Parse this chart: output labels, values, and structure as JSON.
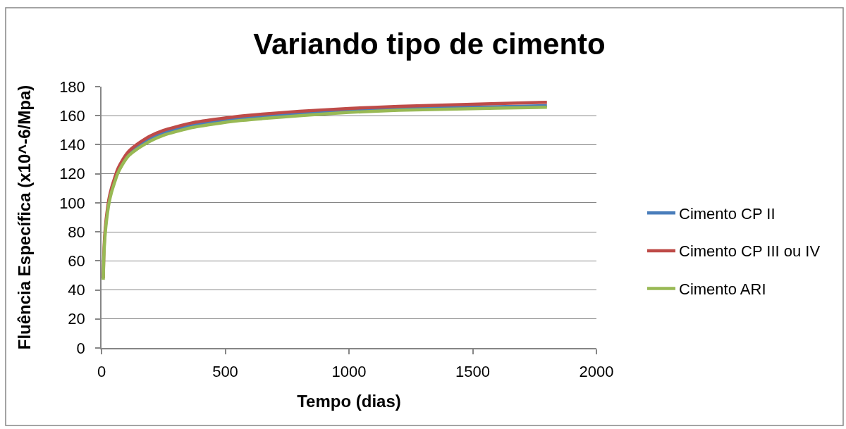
{
  "chart_data": {
    "type": "line",
    "title": "Variando tipo de cimento",
    "xlabel": "Tempo (dias)",
    "ylabel": "Fluência Específica (x10^-6/Mpa)",
    "x": [
      7,
      9,
      12,
      15,
      19,
      25,
      31,
      40,
      50,
      65,
      85,
      110,
      130,
      160,
      200,
      250,
      300,
      370,
      450,
      550,
      650,
      800,
      1000,
      1200,
      1400,
      1600,
      1800
    ],
    "series": [
      {
        "name": "Cimento CP II",
        "color": "#4a7ebb",
        "values": [
          null,
          null,
          null,
          null,
          null,
          null,
          null,
          null,
          null,
          null,
          128,
          134,
          136.6,
          140.2,
          144.2,
          148,
          150.4,
          153.4,
          155.6,
          157.9,
          159.4,
          161.3,
          163.5,
          164.8,
          165.6,
          166.2,
          166.9
        ]
      },
      {
        "name": "Cimento CP III ou IV",
        "color": "#be4b48",
        "values": [
          48,
          63,
          75,
          82,
          89,
          97,
          103.5,
          110,
          115.5,
          123,
          129.5,
          135.5,
          138.5,
          142.2,
          146.3,
          149.9,
          152.3,
          155.2,
          157.3,
          159.5,
          161.1,
          163,
          165,
          166.4,
          167.4,
          168.3,
          169.2
        ]
      },
      {
        "name": "Cimento ARI",
        "color": "#98b954",
        "values": [
          47,
          61,
          72,
          79,
          86,
          94,
          100.4,
          107,
          112.5,
          120,
          126.5,
          132.5,
          135.3,
          138.8,
          142.8,
          146.5,
          149,
          152,
          154.2,
          156.5,
          158,
          160,
          162.3,
          163.7,
          164.5,
          165.2,
          165.8
        ]
      }
    ],
    "xlim": [
      0,
      2000
    ],
    "xticks": [
      0,
      500,
      1000,
      1500,
      2000
    ],
    "ylim": [
      0,
      180
    ],
    "yticks": [
      0,
      20,
      40,
      60,
      80,
      100,
      120,
      140,
      160,
      180
    ],
    "grid": "y",
    "legend": "right",
    "line_style": "solid"
  }
}
